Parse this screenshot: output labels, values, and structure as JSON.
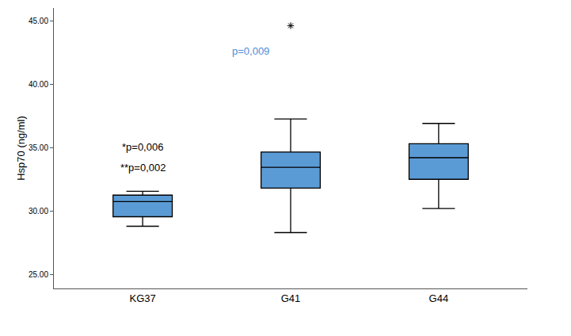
{
  "chart_data": {
    "type": "box",
    "y_label": "Hsp70 (ng/ml)",
    "categories": [
      "KG37",
      "G41",
      "G44"
    ],
    "lower": [
      28.8,
      28.3,
      30.2
    ],
    "q1": [
      29.55,
      31.8,
      32.5
    ],
    "median": [
      30.75,
      33.45,
      34.2
    ],
    "q3": [
      31.25,
      34.65,
      35.3
    ],
    "upper": [
      31.55,
      37.25,
      36.9
    ],
    "outliers": [
      [],
      [
        44.6
      ],
      []
    ],
    "color": "#5b9bd5",
    "ylim": [
      23.9,
      46
    ],
    "yticks": [
      {
        "value": 25,
        "label": "25.00"
      },
      {
        "value": 30,
        "label": "30.00"
      },
      {
        "value": 35,
        "label": "35.00"
      },
      {
        "value": 40,
        "label": "40.00"
      },
      {
        "value": 45,
        "label": "45.00"
      }
    ],
    "grid": false,
    "annotations": [
      {
        "text": "*p=0,006",
        "category": "KG37"
      },
      {
        "text": "**p=0,002",
        "category": "KG37"
      },
      {
        "text": "p=0,009",
        "category": "G41"
      }
    ]
  }
}
